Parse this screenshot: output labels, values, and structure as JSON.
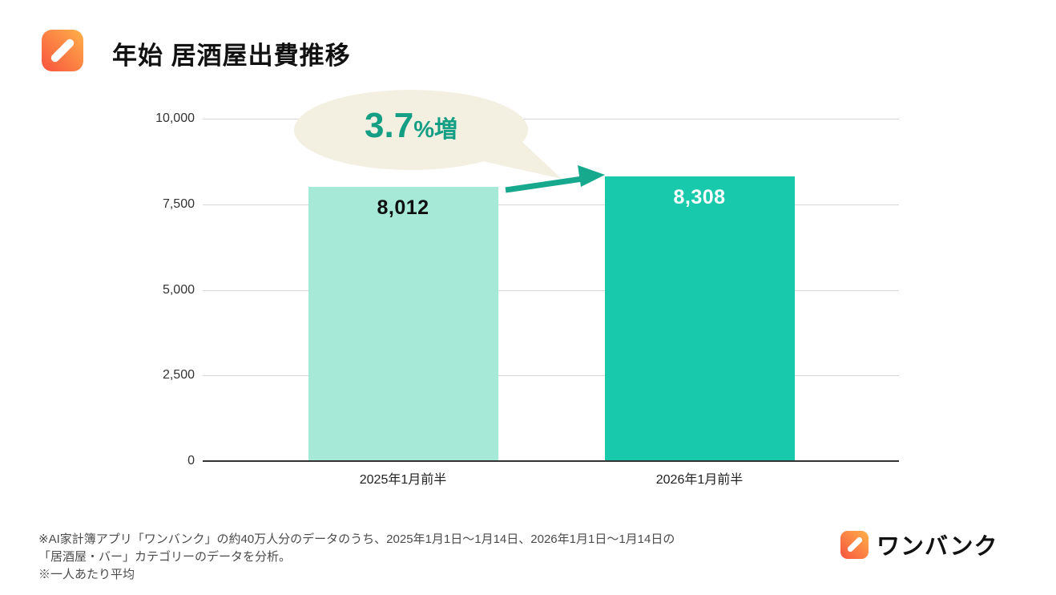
{
  "header": {
    "title": "年始 居酒屋出費推移"
  },
  "chart_data": {
    "type": "bar",
    "title": "年始 居酒屋出費推移",
    "categories": [
      "2025年1月前半",
      "2026年1月前半"
    ],
    "values": [
      8012,
      8308
    ],
    "value_labels": [
      "8,012",
      "8,308"
    ],
    "ylim": [
      0,
      10000
    ],
    "yticks": [
      0,
      2500,
      5000,
      7500,
      10000
    ],
    "ytick_labels": [
      "0",
      "2,500",
      "5,000",
      "7,500",
      "10,000"
    ],
    "bar_colors": [
      "#a5e9d6",
      "#19c9ab"
    ],
    "value_label_colors": [
      "#101010",
      "#ffffff"
    ],
    "grid": true,
    "legend": false,
    "annotation": {
      "value": "3.7",
      "suffix": "%増"
    }
  },
  "colors": {
    "bar_2025": "#a5e9d6",
    "bar_2026": "#19c9ab",
    "arrow": "#17a98e",
    "bubble_fill": "#f3efe1",
    "bubble_text": "#149e84",
    "gridline": "#d6d6d6",
    "axis": "#333333"
  },
  "footnote": {
    "line1": "※AI家計簿アプリ「ワンバンク」の約40万人分のデータのうち、2025年1月1日〜1月14日、2026年1月1日〜1月14日の",
    "line2": "「居酒屋・バー」カテゴリーのデータを分析。",
    "line3": "※一人あたり平均"
  },
  "logo": {
    "text": "ワンバンク"
  }
}
